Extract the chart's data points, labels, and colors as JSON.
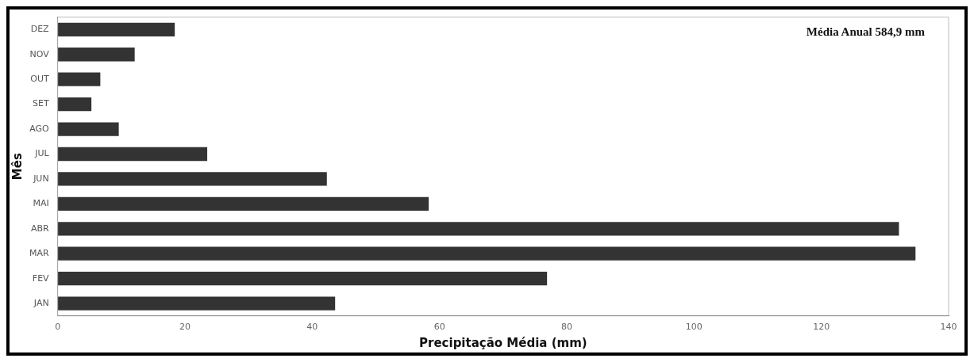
{
  "chart_data": {
    "type": "bar",
    "orientation": "horizontal",
    "xlabel": "Precipitação Média (mm)",
    "ylabel": "Mês",
    "categories": [
      "DEZ",
      "NOV",
      "OUT",
      "SET",
      "AGO",
      "JUL",
      "JUN",
      "MAI",
      "ABR",
      "MAR",
      "FEV",
      "JAN"
    ],
    "values": [
      18.4,
      12.1,
      6.7,
      5.3,
      9.6,
      23.5,
      42.3,
      58.3,
      132.2,
      134.8,
      76.9,
      43.6
    ],
    "color": "#333333",
    "xlim": [
      0,
      140
    ],
    "xticks": [
      0,
      20,
      40,
      60,
      80,
      100,
      120,
      140
    ],
    "grid": false,
    "legend": false,
    "annotations": [
      "Média Anual 584,9 mm"
    ]
  }
}
